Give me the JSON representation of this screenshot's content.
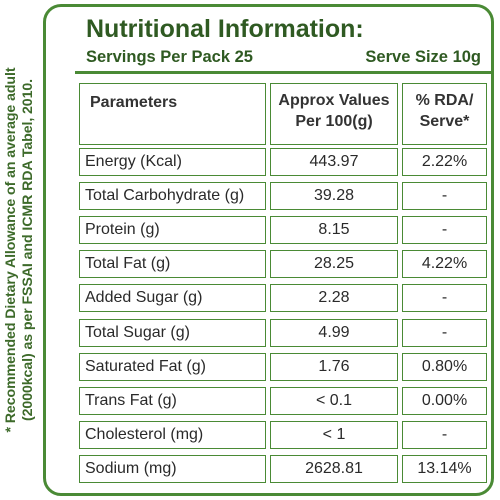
{
  "footnote": {
    "line1": "* Recommended Dietary Allowance of an average adult",
    "line2": "(2000kcal) as per FSSAI and ICMR RDA Tabel, 2010."
  },
  "label": {
    "title": "Nutritional Information:",
    "servings": "Servings Per Pack 25",
    "serve_size": "Serve Size 10g"
  },
  "table": {
    "headers": {
      "parameters": "Parameters",
      "approx": "Approx Values\nPer 100(g)",
      "rda": "% RDA/\nServe*"
    },
    "rows": [
      {
        "parameter": "Energy (Kcal)",
        "value": "443.97",
        "rda": "2.22%"
      },
      {
        "parameter": "Total Carbohydrate (g)",
        "value": "39.28",
        "rda": "-"
      },
      {
        "parameter": "Protein (g)",
        "value": "8.15",
        "rda": "-"
      },
      {
        "parameter": "Total Fat (g)",
        "value": "28.25",
        "rda": "4.22%"
      },
      {
        "parameter": "Added Sugar (g)",
        "value": "2.28",
        "rda": "-"
      },
      {
        "parameter": "Total Sugar (g)",
        "value": "4.99",
        "rda": "-"
      },
      {
        "parameter": "Saturated Fat (g)",
        "value": "1.76",
        "rda": "0.80%"
      },
      {
        "parameter": "Trans Fat (g)",
        "value": "< 0.1",
        "rda": "0.00%"
      },
      {
        "parameter": "Cholesterol (mg)",
        "value": "< 1",
        "rda": "-"
      },
      {
        "parameter": "Sodium (mg)",
        "value": "2628.81",
        "rda": "13.14%"
      }
    ]
  }
}
